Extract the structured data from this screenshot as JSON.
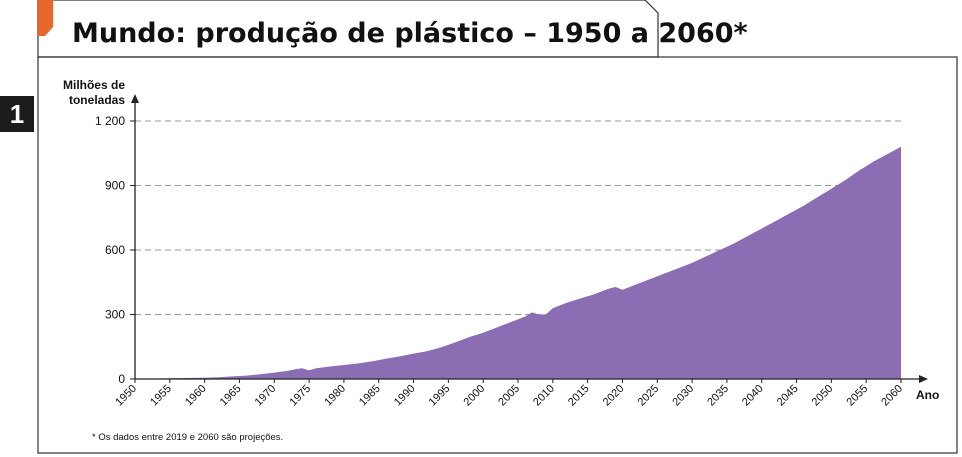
{
  "colors": {
    "accent": "#e8672a",
    "area": "#8a6db2",
    "grid": "#9a9a9a",
    "axis": "#222222",
    "badge": "#1c1c1c"
  },
  "section_number": "1",
  "chart_data": {
    "type": "area",
    "title": "Mundo: produção de plástico – 1950 a 2060*",
    "ylabel_line1": "Milhões de",
    "ylabel_line2": "toneladas",
    "xlabel": "Ano",
    "footnote": "* Os dados entre 2019 e 2060 são projeções.",
    "ylim": [
      0,
      1200
    ],
    "xlim": [
      1950,
      2060
    ],
    "yticks": [
      0,
      300,
      600,
      900,
      1200
    ],
    "ytick_labels": [
      "0",
      "300",
      "600",
      "900",
      "1 200"
    ],
    "xticks": [
      1950,
      1955,
      1960,
      1965,
      1970,
      1975,
      1980,
      1985,
      1990,
      1995,
      2000,
      2005,
      2010,
      2015,
      2020,
      2025,
      2030,
      2035,
      2040,
      2045,
      2050,
      2055,
      2060
    ],
    "grid": "horizontal-dashed",
    "series": [
      {
        "name": "Produção de plástico",
        "x": [
          1950,
          1952,
          1954,
          1956,
          1958,
          1960,
          1962,
          1964,
          1966,
          1968,
          1970,
          1972,
          1973,
          1974,
          1975,
          1976,
          1978,
          1980,
          1982,
          1984,
          1986,
          1988,
          1990,
          1992,
          1994,
          1996,
          1998,
          2000,
          2002,
          2004,
          2006,
          2007,
          2008,
          2009,
          2010,
          2012,
          2014,
          2016,
          2018,
          2019,
          2020,
          2022,
          2024,
          2026,
          2028,
          2030,
          2032,
          2034,
          2036,
          2038,
          2040,
          2042,
          2044,
          2046,
          2048,
          2050,
          2052,
          2054,
          2055,
          2056,
          2058,
          2060
        ],
        "values": [
          2,
          2,
          3,
          4,
          5,
          6,
          8,
          12,
          16,
          22,
          30,
          38,
          45,
          50,
          40,
          50,
          58,
          65,
          72,
          82,
          94,
          105,
          118,
          130,
          148,
          170,
          195,
          215,
          240,
          265,
          290,
          310,
          300,
          300,
          330,
          355,
          375,
          395,
          420,
          428,
          415,
          440,
          465,
          490,
          515,
          540,
          570,
          600,
          630,
          665,
          700,
          735,
          770,
          805,
          845,
          885,
          925,
          970,
          990,
          1010,
          1045,
          1080
        ]
      }
    ]
  }
}
